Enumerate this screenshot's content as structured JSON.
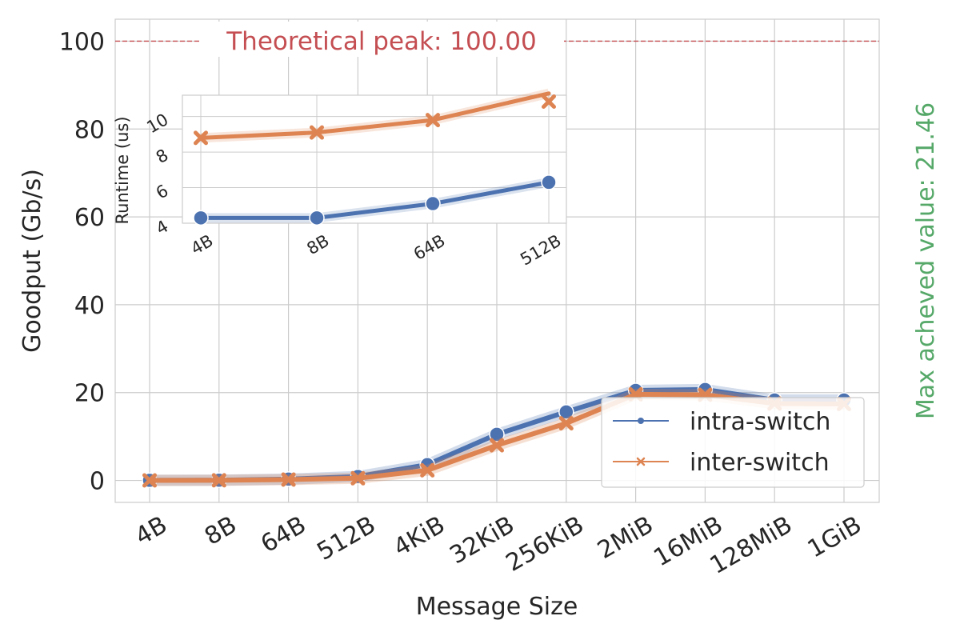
{
  "chart_data": [
    {
      "type": "line",
      "xlabel": "Message Size",
      "ylabel": "Goodput (Gb/s)",
      "categories": [
        "4B",
        "8B",
        "64B",
        "512B",
        "4KiB",
        "32KiB",
        "256KiB",
        "2MiB",
        "16MiB",
        "128MiB",
        "1GiB"
      ],
      "yticks": [
        0,
        20,
        40,
        60,
        80,
        100
      ],
      "ylim": [
        -5,
        105
      ],
      "grid": true,
      "legend_position": "lower-right",
      "reference_line": {
        "value": 100,
        "label": "Theoretical peak: 100.00",
        "color": "#c44e52"
      },
      "side_annotation": {
        "text": "Max acheved value: 21.46",
        "color": "#55a868"
      },
      "series": [
        {
          "name": "intra-switch",
          "color": "#4c72b0",
          "marker": "circle",
          "values": [
            0.02,
            0.05,
            0.3,
            0.9,
            3.6,
            10.5,
            15.6,
            20.5,
            20.7,
            18.3,
            18.3
          ]
        },
        {
          "name": "inter-switch",
          "color": "#dd8452",
          "marker": "x",
          "values": [
            0.01,
            0.03,
            0.2,
            0.5,
            2.3,
            8.0,
            13.0,
            19.6,
            19.5,
            17.5,
            17.4
          ]
        }
      ]
    },
    {
      "type": "line",
      "ylabel": "Runtime (us)",
      "categories": [
        "4B",
        "8B",
        "64B",
        "512B"
      ],
      "yticks": [
        4,
        6,
        8,
        10
      ],
      "ylim": [
        4,
        11.2
      ],
      "grid": true,
      "series": [
        {
          "name": "intra-switch",
          "color": "#4c72b0",
          "marker": "circle",
          "values": [
            4.3,
            4.3,
            5.1,
            6.3
          ]
        },
        {
          "name": "inter-switch",
          "color": "#dd8452",
          "marker": "x",
          "values": [
            8.8,
            9.1,
            9.8,
            11.3
          ]
        }
      ]
    }
  ]
}
